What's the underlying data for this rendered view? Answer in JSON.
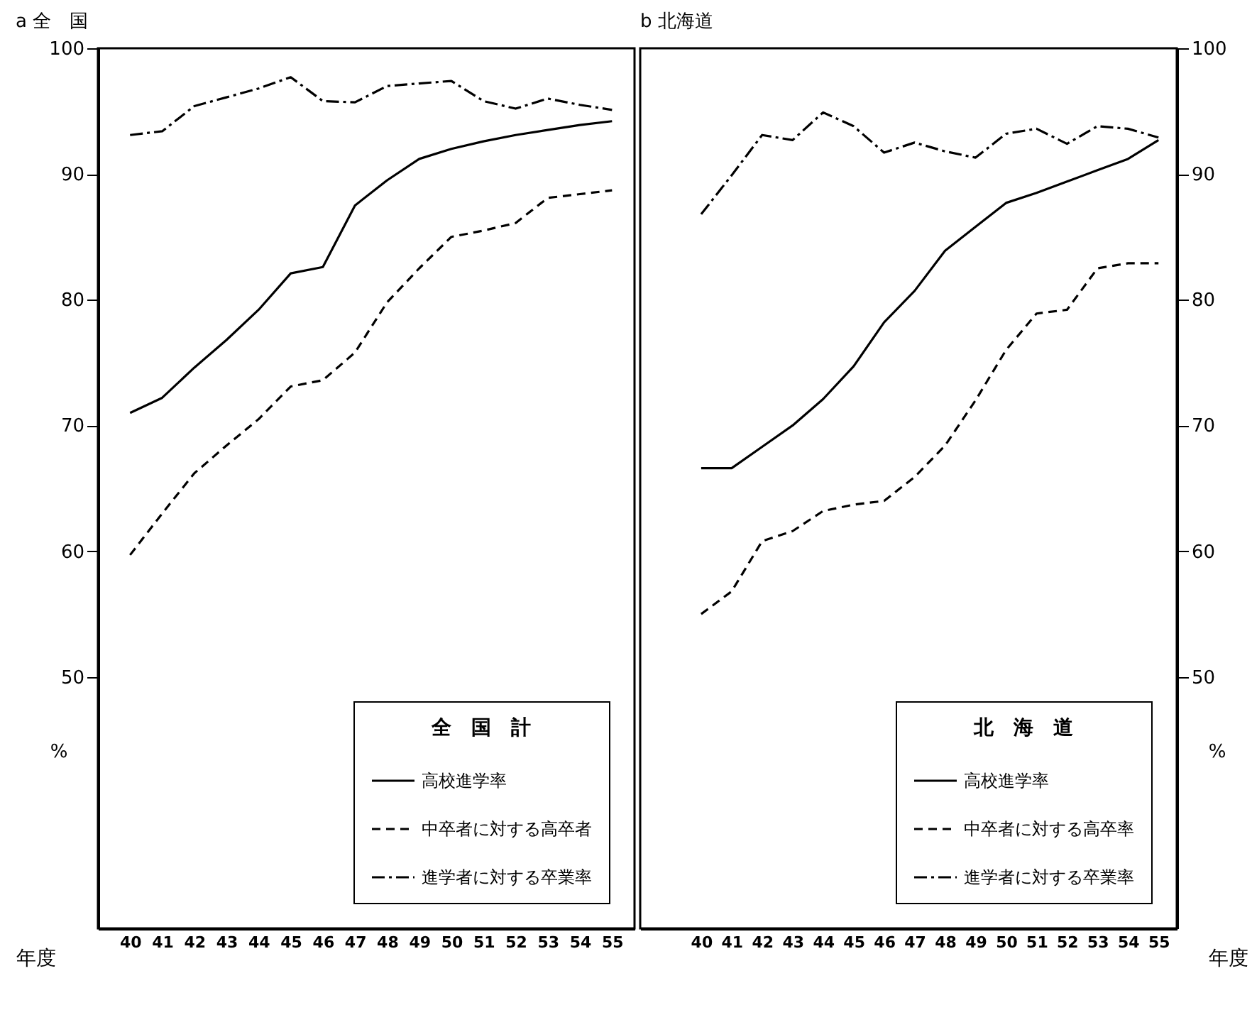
{
  "chart_data": [
    {
      "type": "line",
      "title": "a 全　国",
      "xlabel": "年度",
      "ylabel": "%",
      "legend_title": "全　国　計",
      "legend": "bottom right",
      "x": [
        40,
        41,
        42,
        43,
        44,
        45,
        46,
        47,
        48,
        49,
        50,
        51,
        52,
        53,
        54,
        55
      ],
      "xlim": [
        39,
        55.7
      ],
      "xticks": [
        40,
        41,
        42,
        43,
        44,
        45,
        46,
        47,
        48,
        49,
        50,
        51,
        52,
        53,
        54,
        55
      ],
      "ylim": [
        30,
        100
      ],
      "yticks": [
        50,
        60,
        70,
        80,
        90,
        100
      ],
      "series": [
        {
          "name": "高校進学率",
          "color": "#000000",
          "line_style": "solid",
          "values": [
            71.0,
            72.2,
            74.6,
            76.8,
            79.2,
            82.1,
            82.6,
            87.5,
            89.5,
            91.2,
            92.0,
            92.6,
            93.1,
            93.5,
            93.9,
            94.2
          ]
        },
        {
          "name": "中卒者に対する高卒者",
          "color": "#000000",
          "line_style": "dashed",
          "values": [
            59.7,
            63.0,
            66.2,
            68.4,
            70.5,
            73.1,
            73.6,
            75.8,
            79.8,
            82.5,
            85.0,
            85.5,
            86.1,
            88.1,
            88.4,
            88.7
          ]
        },
        {
          "name": "進学者に対する卒業率",
          "color": "#000000",
          "line_style": "dotted",
          "values": [
            93.1,
            93.4,
            95.4,
            96.1,
            96.8,
            97.7,
            95.8,
            95.7,
            97.0,
            97.2,
            97.4,
            95.8,
            95.2,
            96.0,
            95.5,
            95.1
          ]
        }
      ]
    },
    {
      "type": "line",
      "title": "b 北海道",
      "xlabel": "年度",
      "ylabel": "%",
      "legend_title": "北　海　道",
      "legend": "bottom right",
      "x": [
        40,
        41,
        42,
        43,
        44,
        45,
        46,
        47,
        48,
        49,
        50,
        51,
        52,
        53,
        54,
        55
      ],
      "xlim": [
        38,
        55.6
      ],
      "xticks": [
        40,
        41,
        42,
        43,
        44,
        45,
        46,
        47,
        48,
        49,
        50,
        51,
        52,
        53,
        54,
        55
      ],
      "ylim": [
        30,
        100
      ],
      "yticks": [
        50,
        60,
        70,
        80,
        90,
        100
      ],
      "series": [
        {
          "name": "高校進学率",
          "color": "#000000",
          "line_style": "solid",
          "values": [
            66.6,
            66.6,
            68.3,
            70.0,
            72.1,
            74.7,
            78.2,
            80.7,
            83.9,
            85.8,
            87.7,
            88.5,
            89.4,
            90.3,
            91.2,
            92.7
          ]
        },
        {
          "name": "中卒者に対する高卒率",
          "color": "#000000",
          "line_style": "dashed",
          "values": [
            55.0,
            56.8,
            60.8,
            61.6,
            63.2,
            63.7,
            64.0,
            65.9,
            68.4,
            72.0,
            76.0,
            78.9,
            79.2,
            82.5,
            82.9,
            82.9
          ]
        },
        {
          "name": "進学者に対する卒業率",
          "color": "#000000",
          "line_style": "dotted",
          "values": [
            86.8,
            89.9,
            93.1,
            92.7,
            94.9,
            93.8,
            91.7,
            92.5,
            91.8,
            91.3,
            93.2,
            93.6,
            92.4,
            93.8,
            93.6,
            92.9
          ]
        }
      ]
    }
  ]
}
